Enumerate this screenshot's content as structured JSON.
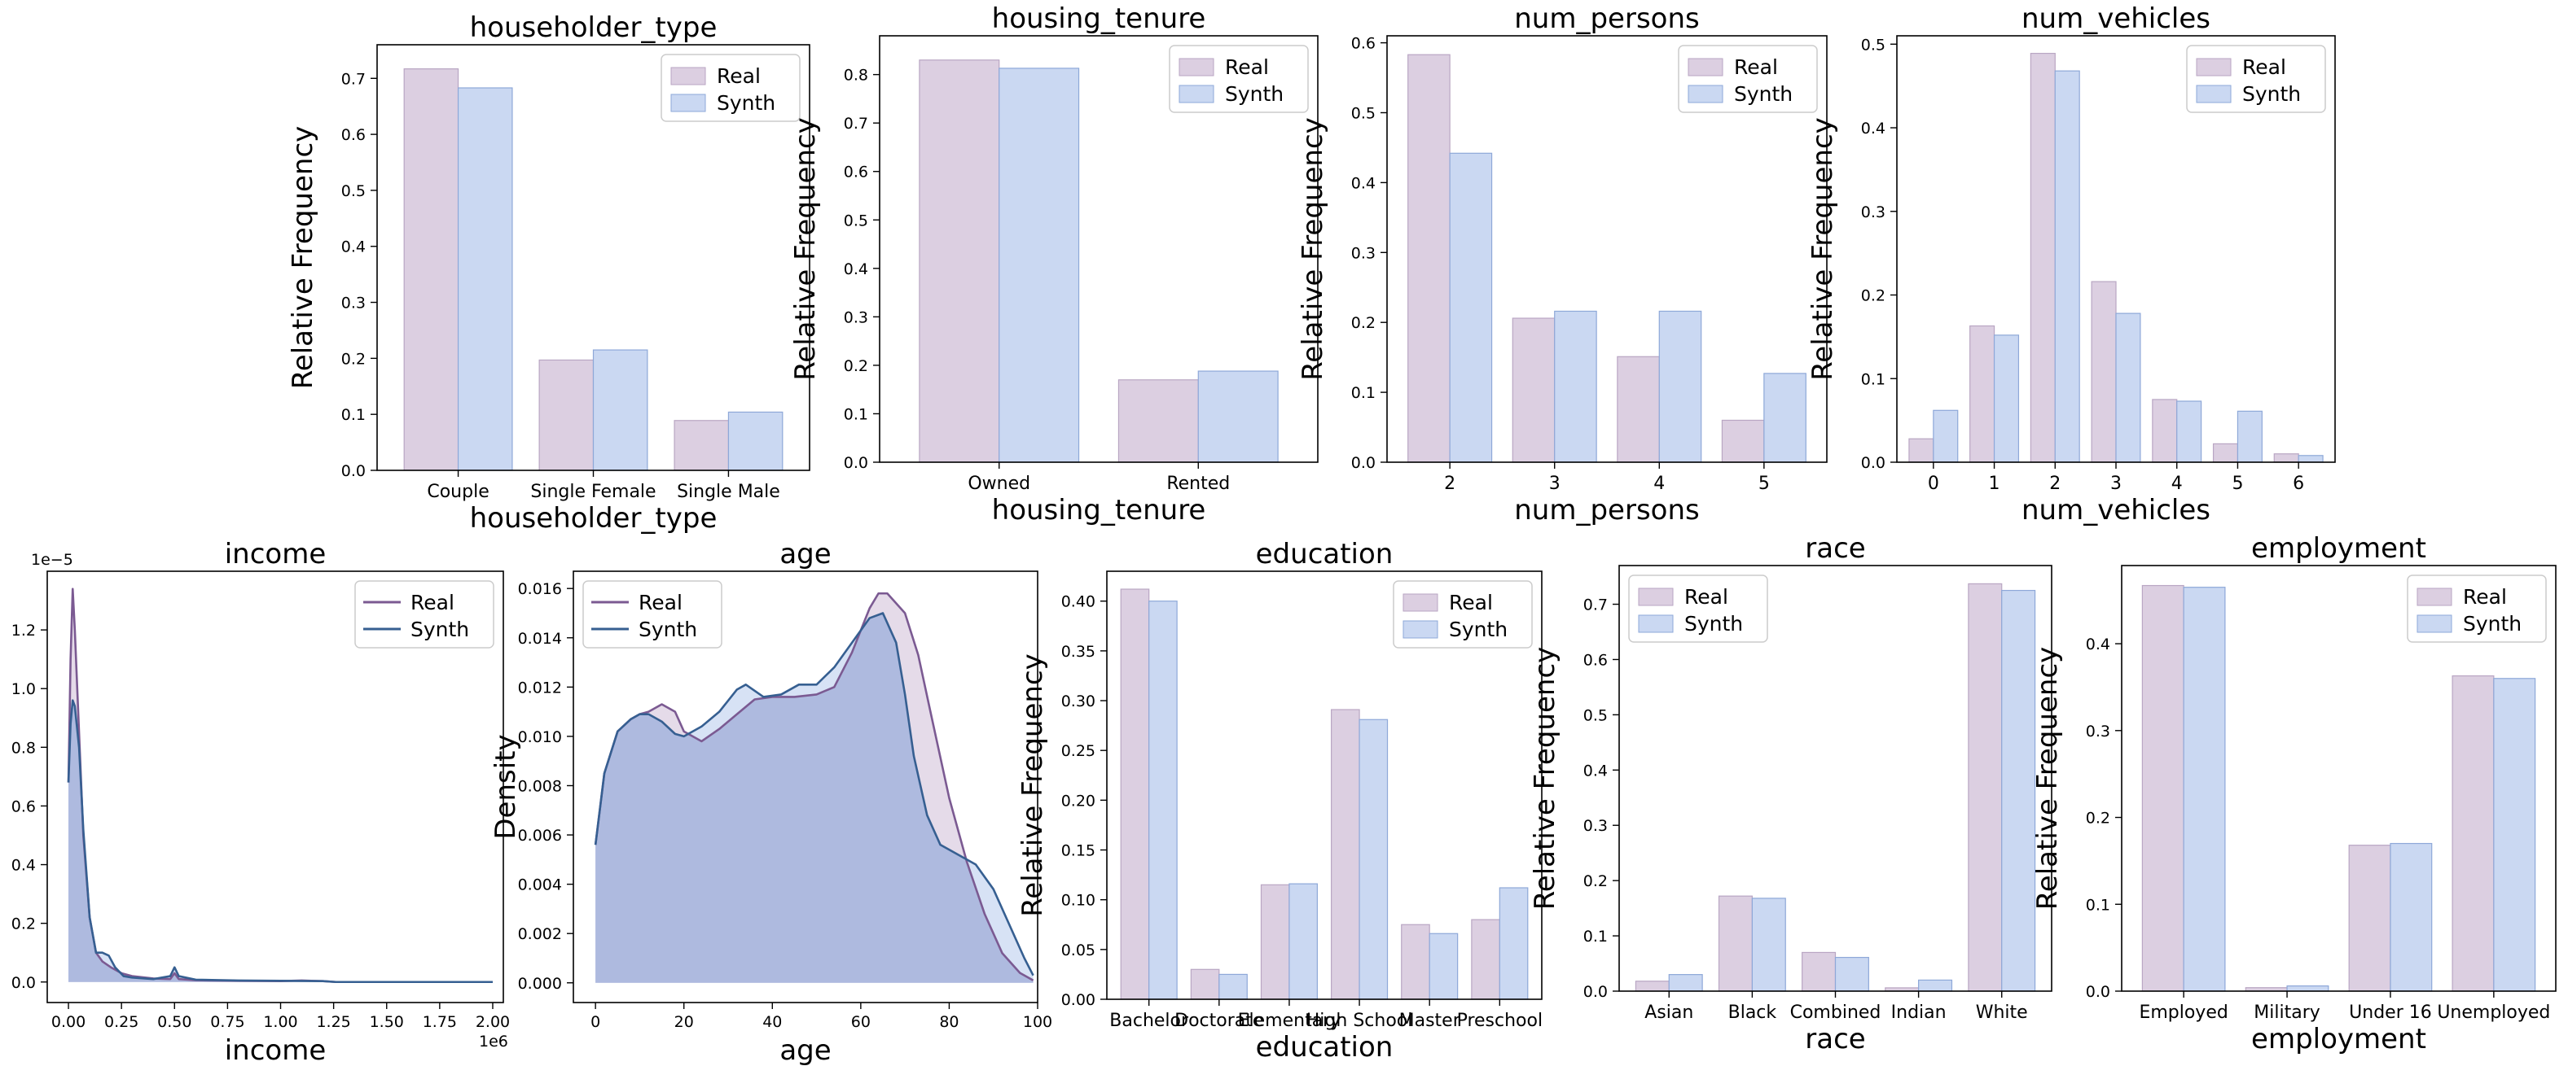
{
  "colors": {
    "real_fill": "#dccfe1",
    "real_edge": "#b9a6c3",
    "synth_fill": "#cad8f2",
    "synth_edge": "#8ea8d8",
    "real_line": "#7b5a92",
    "synth_line": "#365f91",
    "kde_fill": "#aab6dd"
  },
  "chart_data": [
    {
      "type": "bar",
      "title": "householder_type",
      "xlabel": "householder_type",
      "ylabel": "Relative Frequency",
      "categories": [
        "Couple",
        "Single Female",
        "Single Male"
      ],
      "series": [
        {
          "name": "Real",
          "values": [
            0.717,
            0.197,
            0.089
          ]
        },
        {
          "name": "Synth",
          "values": [
            0.683,
            0.215,
            0.104
          ]
        }
      ],
      "ylim": [
        0,
        0.76
      ],
      "yticks": [
        "0.0",
        "0.1",
        "0.2",
        "0.3",
        "0.4",
        "0.5",
        "0.6",
        "0.7"
      ],
      "legend": "top-right"
    },
    {
      "type": "bar",
      "title": "housing_tenure",
      "xlabel": "housing_tenure",
      "ylabel": "Relative Frequency",
      "categories": [
        "Owned",
        "Rented"
      ],
      "series": [
        {
          "name": "Real",
          "values": [
            0.83,
            0.17
          ]
        },
        {
          "name": "Synth",
          "values": [
            0.813,
            0.188
          ]
        }
      ],
      "ylim": [
        0,
        0.88
      ],
      "yticks": [
        "0.0",
        "0.1",
        "0.2",
        "0.3",
        "0.4",
        "0.5",
        "0.6",
        "0.7",
        "0.8"
      ],
      "legend": "top-right"
    },
    {
      "type": "bar",
      "title": "num_persons",
      "xlabel": "num_persons",
      "ylabel": "Relative Frequency",
      "categories": [
        "2",
        "3",
        "4",
        "5"
      ],
      "series": [
        {
          "name": "Real",
          "values": [
            0.583,
            0.206,
            0.151,
            0.06
          ]
        },
        {
          "name": "Synth",
          "values": [
            0.442,
            0.216,
            0.216,
            0.127
          ]
        }
      ],
      "ylim": [
        0,
        0.61
      ],
      "yticks": [
        "0.0",
        "0.1",
        "0.2",
        "0.3",
        "0.4",
        "0.5",
        "0.6"
      ],
      "legend": "top-right"
    },
    {
      "type": "bar",
      "title": "num_vehicles",
      "xlabel": "num_vehicles",
      "ylabel": "Relative Frequency",
      "categories": [
        "0",
        "1",
        "2",
        "3",
        "4",
        "5",
        "6"
      ],
      "series": [
        {
          "name": "Real",
          "values": [
            0.028,
            0.163,
            0.489,
            0.216,
            0.075,
            0.022,
            0.01
          ]
        },
        {
          "name": "Synth",
          "values": [
            0.062,
            0.152,
            0.468,
            0.178,
            0.073,
            0.061,
            0.008
          ]
        }
      ],
      "ylim": [
        0,
        0.51
      ],
      "yticks": [
        "0.0",
        "0.1",
        "0.2",
        "0.3",
        "0.4",
        "0.5"
      ],
      "legend": "top-right"
    },
    {
      "type": "line",
      "title": "income",
      "xlabel": "income",
      "ylabel": "Density",
      "x_multiplier": "1e6",
      "y_multiplier": "1e−5",
      "xlim": [
        -0.1,
        2.05
      ],
      "ylim": [
        -0.07,
        1.4
      ],
      "xticks": [
        "0.00",
        "0.25",
        "0.50",
        "0.75",
        "1.00",
        "1.25",
        "1.50",
        "1.75",
        "2.00"
      ],
      "yticks": [
        "0.0",
        "0.2",
        "0.4",
        "0.6",
        "0.8",
        "1.0",
        "1.2"
      ],
      "series": [
        {
          "name": "Real",
          "x": [
            0,
            0.01,
            0.02,
            0.03,
            0.05,
            0.07,
            0.1,
            0.13,
            0.16,
            0.2,
            0.25,
            0.3,
            0.4,
            0.48,
            0.5,
            0.52,
            0.6,
            0.8,
            1.0,
            1.1,
            1.2,
            1.26,
            1.5,
            2.0
          ],
          "y": [
            0.68,
            1.1,
            1.34,
            1.2,
            0.85,
            0.5,
            0.22,
            0.1,
            0.07,
            0.05,
            0.03,
            0.02,
            0.012,
            0.01,
            0.03,
            0.01,
            0.006,
            0.004,
            0.003,
            0.005,
            0.003,
            0.0,
            0.0,
            0.0
          ]
        },
        {
          "name": "Synth",
          "x": [
            0,
            0.01,
            0.02,
            0.03,
            0.05,
            0.07,
            0.1,
            0.13,
            0.16,
            0.19,
            0.22,
            0.26,
            0.3,
            0.4,
            0.48,
            0.5,
            0.52,
            0.6,
            0.8,
            1.0,
            1.2,
            1.26,
            1.5,
            2.0
          ],
          "y": [
            0.68,
            0.88,
            0.96,
            0.94,
            0.8,
            0.52,
            0.22,
            0.1,
            0.1,
            0.09,
            0.05,
            0.02,
            0.015,
            0.01,
            0.02,
            0.05,
            0.02,
            0.008,
            0.005,
            0.004,
            0.003,
            0.0,
            0.0,
            0.0
          ]
        }
      ],
      "legend": "top-right"
    },
    {
      "type": "line",
      "title": "age",
      "xlabel": "age",
      "ylabel": "Density",
      "xlim": [
        -5,
        100
      ],
      "ylim": [
        -0.0008,
        0.0167
      ],
      "xticks": [
        "0",
        "20",
        "40",
        "60",
        "80",
        "100"
      ],
      "yticks": [
        "0.000",
        "0.002",
        "0.004",
        "0.006",
        "0.008",
        "0.010",
        "0.012",
        "0.014",
        "0.016"
      ],
      "series": [
        {
          "name": "Real",
          "x": [
            0,
            2,
            5,
            8,
            10,
            12,
            15,
            18,
            20,
            24,
            28,
            32,
            36,
            40,
            45,
            50,
            54,
            58,
            62,
            64,
            66,
            70,
            73,
            76,
            80,
            84,
            88,
            92,
            96,
            99
          ],
          "y": [
            0.0056,
            0.0085,
            0.0102,
            0.0107,
            0.0109,
            0.011,
            0.0113,
            0.011,
            0.0102,
            0.0098,
            0.0103,
            0.0109,
            0.0115,
            0.0116,
            0.0116,
            0.0117,
            0.012,
            0.0134,
            0.0152,
            0.0158,
            0.0158,
            0.015,
            0.0133,
            0.0108,
            0.0075,
            0.0049,
            0.0028,
            0.0012,
            0.0004,
            0.0001
          ]
        },
        {
          "name": "Synth",
          "x": [
            0,
            2,
            5,
            8,
            10,
            12,
            15,
            18,
            20,
            24,
            28,
            32,
            34,
            38,
            42,
            46,
            50,
            54,
            58,
            62,
            65,
            68,
            70,
            72,
            75,
            78,
            82,
            86,
            90,
            94,
            97,
            99
          ],
          "y": [
            0.0056,
            0.0085,
            0.0102,
            0.0107,
            0.0109,
            0.0109,
            0.0106,
            0.0101,
            0.01,
            0.0104,
            0.011,
            0.0119,
            0.0121,
            0.0116,
            0.0117,
            0.0121,
            0.0121,
            0.0128,
            0.0138,
            0.0148,
            0.015,
            0.0138,
            0.0117,
            0.0092,
            0.0068,
            0.0056,
            0.0052,
            0.0048,
            0.0038,
            0.0022,
            0.001,
            0.0003
          ]
        }
      ],
      "legend": "top-left"
    },
    {
      "type": "bar",
      "title": "education",
      "xlabel": "education",
      "ylabel": "Relative Frequency",
      "categories": [
        "Bachelor",
        "Doctorate",
        "Elementary",
        "High School",
        "Master",
        "Preschool"
      ],
      "series": [
        {
          "name": "Real",
          "values": [
            0.412,
            0.03,
            0.115,
            0.291,
            0.075,
            0.08
          ]
        },
        {
          "name": "Synth",
          "values": [
            0.4,
            0.025,
            0.116,
            0.281,
            0.066,
            0.112
          ]
        }
      ],
      "ylim": [
        0,
        0.43
      ],
      "yticks": [
        "0.00",
        "0.05",
        "0.10",
        "0.15",
        "0.20",
        "0.25",
        "0.30",
        "0.35",
        "0.40"
      ],
      "legend": "top-right"
    },
    {
      "type": "bar",
      "title": "race",
      "xlabel": "race",
      "ylabel": "Relative Frequency",
      "categories": [
        "Asian",
        "Black",
        "Combined",
        "Indian",
        "White"
      ],
      "series": [
        {
          "name": "Real",
          "values": [
            0.018,
            0.172,
            0.07,
            0.006,
            0.737
          ]
        },
        {
          "name": "Synth",
          "values": [
            0.03,
            0.168,
            0.061,
            0.02,
            0.725
          ]
        }
      ],
      "ylim": [
        0,
        0.77
      ],
      "yticks": [
        "0.0",
        "0.1",
        "0.2",
        "0.3",
        "0.4",
        "0.5",
        "0.6",
        "0.7"
      ],
      "legend": "top-left"
    },
    {
      "type": "bar",
      "title": "employment",
      "xlabel": "employment",
      "ylabel": "Relative Frequency",
      "categories": [
        "Employed",
        "Military",
        "Under 16",
        "Unemployed"
      ],
      "series": [
        {
          "name": "Real",
          "values": [
            0.467,
            0.004,
            0.168,
            0.363
          ]
        },
        {
          "name": "Synth",
          "values": [
            0.465,
            0.006,
            0.17,
            0.36
          ]
        }
      ],
      "ylim": [
        0,
        0.49
      ],
      "yticks": [
        "0.0",
        "0.1",
        "0.2",
        "0.3",
        "0.4"
      ],
      "legend": "top-right"
    }
  ]
}
